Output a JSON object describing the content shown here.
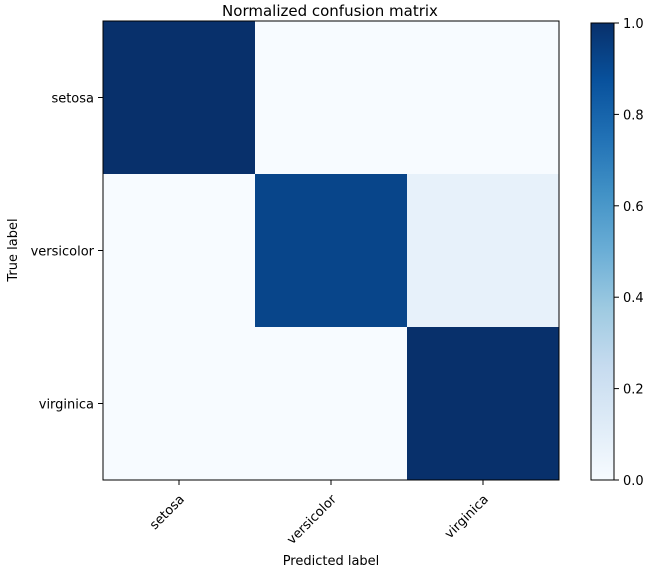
{
  "chart_data": {
    "type": "heatmap",
    "title": "Normalized confusion matrix",
    "xlabel": "Predicted label",
    "ylabel": "True label",
    "x_categories": [
      "setosa",
      "versicolor",
      "virginica"
    ],
    "y_categories": [
      "setosa",
      "versicolor",
      "virginica"
    ],
    "values": [
      [
        1.0,
        0.0,
        0.0
      ],
      [
        0.0,
        0.92,
        0.08
      ],
      [
        0.0,
        0.0,
        1.0
      ]
    ],
    "colormap": "Blues",
    "color_range": [
      0.0,
      1.0
    ],
    "colorbar_ticks": [
      0.0,
      0.2,
      0.4,
      0.6,
      0.8,
      1.0
    ],
    "colorbar_tick_labels": [
      "0.0",
      "0.2",
      "0.4",
      "0.6",
      "0.8",
      "1.0"
    ]
  }
}
